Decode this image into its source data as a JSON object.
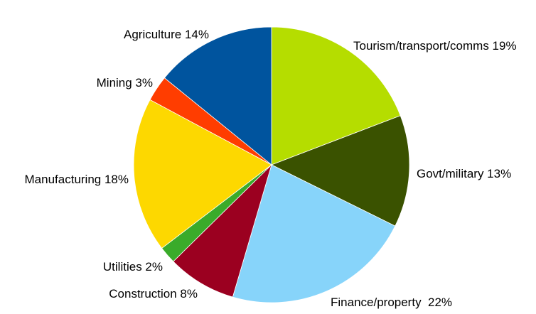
{
  "chart_data": {
    "type": "pie",
    "title": "",
    "slices": [
      {
        "label": "Tourism/transport/comms 19%",
        "category": "Tourism/transport/comms",
        "value": 19,
        "color": "#b5dd00"
      },
      {
        "label": "Govt/military 13%",
        "category": "Govt/military",
        "value": 13,
        "color": "#3a5200"
      },
      {
        "label": "Finance/property  22%",
        "category": "Finance/property",
        "value": 22,
        "color": "#87d4fa"
      },
      {
        "label": "Construction 8%",
        "category": "Construction",
        "value": 8,
        "color": "#9b0020"
      },
      {
        "label": "Utilities 2%",
        "category": "Utilities",
        "value": 2,
        "color": "#3aab2a"
      },
      {
        "label": "Manufacturing 18%",
        "category": "Manufacturing",
        "value": 18,
        "color": "#fdd800"
      },
      {
        "label": "Mining 3%",
        "category": "Mining",
        "value": 3,
        "color": "#ff3d00"
      },
      {
        "label": "Agriculture 14%",
        "category": "Agriculture",
        "value": 14,
        "color": "#00549e"
      }
    ],
    "start_angle": "12 o'clock",
    "direction": "clockwise",
    "legend": "none"
  }
}
